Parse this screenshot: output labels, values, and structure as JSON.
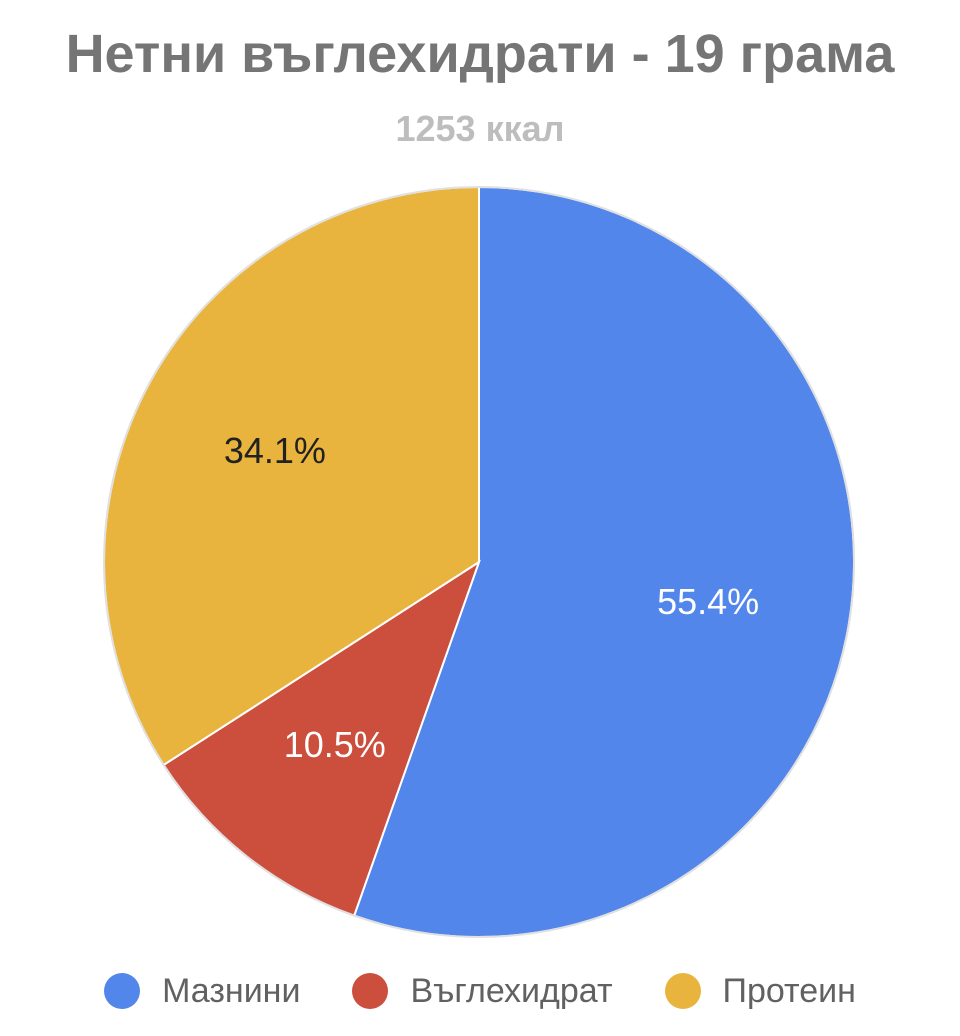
{
  "chart_data": {
    "type": "pie",
    "title": "Нетни въглехидрати - 19 грама",
    "subtitle": "1253 ккал",
    "categories": [
      "Мазнини",
      "Въглехидрат",
      "Протеин"
    ],
    "values": [
      55.4,
      10.5,
      34.1
    ],
    "labels": [
      "55.4%",
      "10.5%",
      "34.1%"
    ],
    "colors": [
      "#5286eb",
      "#cc4e3d",
      "#e8b43d"
    ],
    "label_colors": [
      "#ffffff",
      "#ffffff",
      "#212121"
    ],
    "start_angle": "12 o'clock",
    "direction": "clockwise",
    "legend_position": "bottom"
  }
}
